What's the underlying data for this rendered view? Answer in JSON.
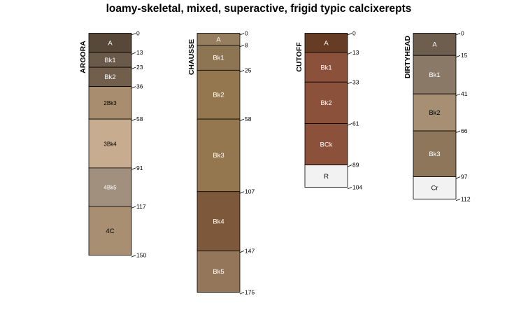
{
  "title": "loamy-skeletal, mixed, superactive, frigid typic calcixerepts",
  "profiles": [
    {
      "name": "ARGORA",
      "horizons": [
        {
          "label": "A",
          "top": 0,
          "bottom": 13,
          "color": "#574839",
          "text_color": "#ffffff"
        },
        {
          "label": "Bk1",
          "top": 13,
          "bottom": 23,
          "color": "#6a5a49",
          "text_color": "#ffffff"
        },
        {
          "label": "Bk2",
          "top": 23,
          "bottom": 36,
          "color": "#715f4c",
          "text_color": "#ffffff"
        },
        {
          "label": "2Bk3",
          "top": 36,
          "bottom": 58,
          "color": "#a88d6e",
          "text_color": "#000000",
          "small": true
        },
        {
          "label": "3Bk4",
          "top": 58,
          "bottom": 91,
          "color": "#c8ac8f",
          "text_color": "#000000",
          "small": true
        },
        {
          "label": "4Bk5",
          "top": 91,
          "bottom": 117,
          "color": "#a1907e",
          "text_color": "#ffffff",
          "small": true
        },
        {
          "label": "4C",
          "top": 117,
          "bottom": 150,
          "color": "#a98f71",
          "text_color": "#000000"
        }
      ]
    },
    {
      "name": "CHAUSSE",
      "horizons": [
        {
          "label": "A",
          "top": 0,
          "bottom": 8,
          "color": "#957e60",
          "text_color": "#ffffff"
        },
        {
          "label": "Bk1",
          "top": 8,
          "bottom": 25,
          "color": "#8d7453",
          "text_color": "#ffffff"
        },
        {
          "label": "Bk2",
          "top": 25,
          "bottom": 58,
          "color": "#94774f",
          "text_color": "#ffffff"
        },
        {
          "label": "Bk3",
          "top": 58,
          "bottom": 107,
          "color": "#94774f",
          "text_color": "#ffffff"
        },
        {
          "label": "Bk4",
          "top": 107,
          "bottom": 147,
          "color": "#7d583a",
          "text_color": "#ffffff"
        },
        {
          "label": "Bk5",
          "top": 147,
          "bottom": 175,
          "color": "#94765a",
          "text_color": "#ffffff"
        }
      ]
    },
    {
      "name": "CUTOFF",
      "horizons": [
        {
          "label": "A",
          "top": 0,
          "bottom": 13,
          "color": "#673c25",
          "text_color": "#ffffff"
        },
        {
          "label": "Bk1",
          "top": 13,
          "bottom": 33,
          "color": "#8c513a",
          "text_color": "#ffffff"
        },
        {
          "label": "Bk2",
          "top": 33,
          "bottom": 61,
          "color": "#8c513a",
          "text_color": "#ffffff"
        },
        {
          "label": "BCk",
          "top": 61,
          "bottom": 89,
          "color": "#8c513a",
          "text_color": "#ffffff"
        },
        {
          "label": "R",
          "top": 89,
          "bottom": 104,
          "color": "#f2f2f2",
          "text_color": "#000000"
        }
      ]
    },
    {
      "name": "DIRTYHEAD",
      "horizons": [
        {
          "label": "A",
          "top": 0,
          "bottom": 15,
          "color": "#6e5e4d",
          "text_color": "#ffffff"
        },
        {
          "label": "Bk1",
          "top": 15,
          "bottom": 41,
          "color": "#8a7967",
          "text_color": "#ffffff"
        },
        {
          "label": "Bk2",
          "top": 41,
          "bottom": 66,
          "color": "#a68f72",
          "text_color": "#000000"
        },
        {
          "label": "Bk3",
          "top": 66,
          "bottom": 97,
          "color": "#8d7659",
          "text_color": "#ffffff"
        },
        {
          "label": "Cr",
          "top": 97,
          "bottom": 112,
          "color": "#f2f2f2",
          "text_color": "#000000"
        }
      ]
    }
  ]
}
